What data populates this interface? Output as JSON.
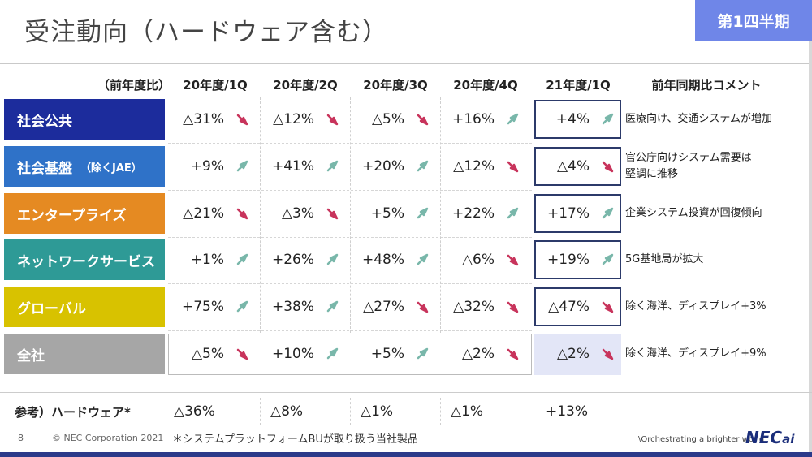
{
  "header": {
    "title": "受注動向（ハードウェア含む）",
    "badge": "第1四半期"
  },
  "table": {
    "basis_label": "（前年度比）",
    "periods": [
      "20年度/1Q",
      "20年度/2Q",
      "20年度/3Q",
      "20年度/4Q",
      "21年度/1Q"
    ],
    "comment_header": "前年同期比コメント",
    "rows": [
      {
        "label": "社会公共",
        "sub": "",
        "color": "#1c2c9c",
        "values": [
          "△31%",
          "△12%",
          "△5%",
          "+16%",
          "+4%"
        ],
        "trend": [
          "down",
          "down",
          "down",
          "up",
          "up"
        ],
        "comment_lines": [
          "医療向け、交通システムが増加"
        ]
      },
      {
        "label": "社会基盤",
        "sub": "（除くJAE）",
        "color": "#2f72c8",
        "values": [
          "+9%",
          "+41%",
          "+20%",
          "△12%",
          "△4%"
        ],
        "trend": [
          "up",
          "up",
          "up",
          "down",
          "down"
        ],
        "comment_lines": [
          "官公庁向けシステム需要は",
          "堅調に推移"
        ]
      },
      {
        "label": "エンタープライズ",
        "sub": "",
        "color": "#e58a22",
        "values": [
          "△21%",
          "△3%",
          "+5%",
          "+22%",
          "+17%"
        ],
        "trend": [
          "down",
          "down",
          "up",
          "up",
          "up"
        ],
        "comment_lines": [
          "企業システム投資が回復傾向"
        ]
      },
      {
        "label": "ネットワークサービス",
        "sub": "",
        "color": "#2e9a96",
        "values": [
          "+1%",
          "+26%",
          "+48%",
          "△6%",
          "+19%"
        ],
        "trend": [
          "up",
          "up",
          "up",
          "down",
          "up"
        ],
        "comment_lines": [
          "5G基地局が拡大"
        ]
      },
      {
        "label": "グローバル",
        "sub": "",
        "color": "#d8c200",
        "values": [
          "+75%",
          "+38%",
          "△27%",
          "△32%",
          "△47%"
        ],
        "trend": [
          "up",
          "up",
          "down",
          "down",
          "down"
        ],
        "comment_lines": [
          "除く海洋、ディスプレイ+3%"
        ]
      },
      {
        "label": "全社",
        "sub": "",
        "color": "#a6a6a6",
        "values": [
          "△5%",
          "+10%",
          "+5%",
          "△2%",
          "△2%"
        ],
        "trend": [
          "down",
          "up",
          "up",
          "down",
          "down"
        ],
        "comment_lines": [
          "除く海洋、ディスプレイ+9%"
        ]
      }
    ]
  },
  "reference": {
    "label": "参考）ハードウェア*",
    "values": [
      "△36%",
      "△8%",
      "△1%",
      "△1%",
      "+13%"
    ]
  },
  "footer": {
    "page": "8",
    "copyright": "© NEC Corporation 2021",
    "footnote": "＊システムプラットフォームBUが取り扱う当社製品",
    "tagline": "\\Orchestrating a brighter world",
    "logo_main": "NEC",
    "logo_ai": "ai"
  },
  "colors": {
    "arrow_up": "#79b7aa",
    "arrow_down": "#c8345c",
    "highlight_border": "#2c3a6a"
  }
}
